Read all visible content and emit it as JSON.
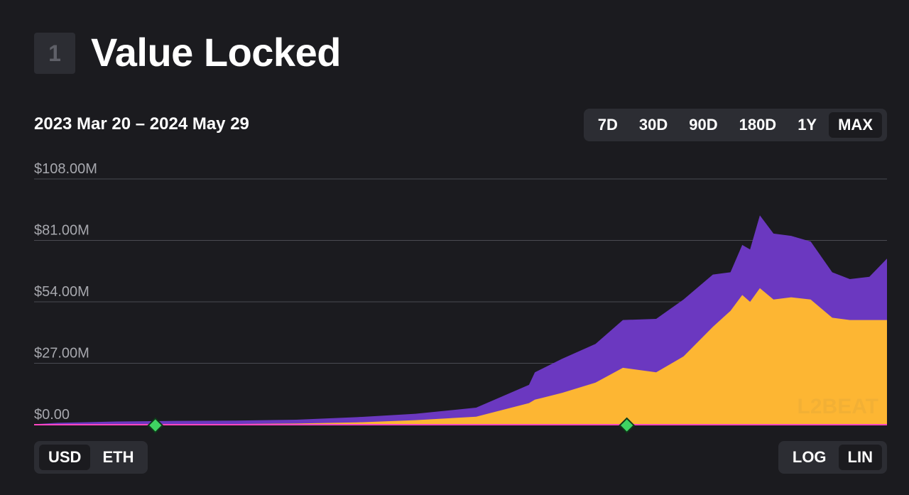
{
  "header": {
    "badge": "1",
    "title": "Value Locked"
  },
  "date_range": "2023 Mar 20 – 2024 May 29",
  "range_options": [
    "7D",
    "30D",
    "90D",
    "180D",
    "1Y",
    "MAX"
  ],
  "range_selected": "MAX",
  "currency_options": [
    "USD",
    "ETH"
  ],
  "currency_selected": "USD",
  "scale_options": [
    "LOG",
    "LIN"
  ],
  "scale_selected": "LIN",
  "watermark": "L2BEAT",
  "colors": {
    "background": "#1b1b1f",
    "series_top": "#6b38c0",
    "series_bottom": "#fdb633",
    "baseline": "#ff46c0",
    "milestone": "#3fd462"
  },
  "chart_data": {
    "type": "area",
    "stacked": true,
    "x_start": "2023-03-20",
    "x_end": "2024-05-29",
    "ylim": [
      0,
      108000000
    ],
    "yticks": [
      0,
      27000000,
      54000000,
      81000000,
      108000000
    ],
    "ytick_labels": [
      "$0.00",
      "$27.00M",
      "$54.00M",
      "$81.00M",
      "$108.00M"
    ],
    "grid": true,
    "x": [
      "2023-03-20",
      "2023-04-01",
      "2023-05-01",
      "2023-06-01",
      "2023-07-01",
      "2023-08-01",
      "2023-09-01",
      "2023-10-01",
      "2023-11-01",
      "2023-11-28",
      "2023-12-01",
      "2023-12-15",
      "2024-01-01",
      "2024-01-15",
      "2024-02-01",
      "2024-02-15",
      "2024-03-01",
      "2024-03-10",
      "2024-03-16",
      "2024-03-20",
      "2024-03-25",
      "2024-04-01",
      "2024-04-10",
      "2024-04-20",
      "2024-05-01",
      "2024-05-10",
      "2024-05-20",
      "2024-05-29"
    ],
    "series": [
      {
        "values": [
          0.2,
          0.8,
          1.3,
          1.5,
          1.5,
          1.7,
          2.3,
          2.8,
          4.0,
          8.0,
          12.0,
          15.0,
          17.0,
          21.0,
          23.5,
          25.0,
          23.0,
          17.0,
          22.0,
          23.0,
          32.0,
          29.0,
          27.0,
          25.5,
          20.0,
          18.0,
          19.0,
          27.0
        ]
      },
      {
        "values": [
          0,
          0,
          0.1,
          0.2,
          0.3,
          0.5,
          1.0,
          2.0,
          3.5,
          9.5,
          11.0,
          14.0,
          18.5,
          25.0,
          23.0,
          30.0,
          43.0,
          50.0,
          57.0,
          54.0,
          60.0,
          55.0,
          56.0,
          55.0,
          47.0,
          46.0,
          46.0,
          46.0
        ]
      }
    ],
    "milestones": [
      "2023-05-21",
      "2024-01-17"
    ]
  }
}
